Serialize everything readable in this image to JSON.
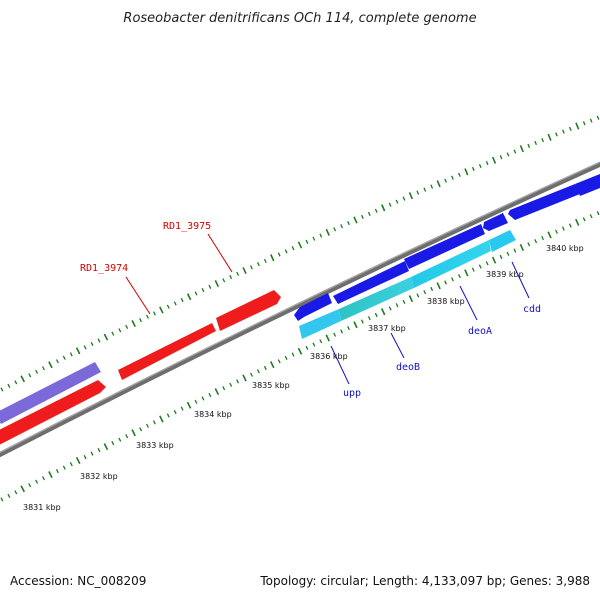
{
  "title": "Roseobacter denitrificans OCh 114, complete genome",
  "footer": {
    "accession": "Accession: NC_008209",
    "summary": "Topology: circular; Length: 4,133,097 bp; Genes: 3,988"
  },
  "colors": {
    "backbone": "#6e6e6e",
    "tick": "#1f7a1f",
    "forward_gene": "#ff0000",
    "reverse_gene": "#1a1ae6",
    "cyan_gene": "#33ccee",
    "light_blue_gene": "#29b6f6",
    "purple_gene": "#7b68d9",
    "label_red": "#d40000",
    "label_blue": "#1010c8"
  },
  "ticks": [
    {
      "label": "3831 kbp"
    },
    {
      "label": "3832 kbp"
    },
    {
      "label": "3833 kbp"
    },
    {
      "label": "3834 kbp"
    },
    {
      "label": "3835 kbp"
    },
    {
      "label": "3836 kbp"
    },
    {
      "label": "3837 kbp"
    },
    {
      "label": "3838 kbp"
    },
    {
      "label": "3839 kbp"
    },
    {
      "label": "3840 kbp"
    }
  ],
  "gene_labels": {
    "rd1_3974": "RD1_3974",
    "rd1_3975": "RD1_3975",
    "upp": "upp",
    "deob": "deoB",
    "deoa": "deoA",
    "cdd": "cdd"
  }
}
